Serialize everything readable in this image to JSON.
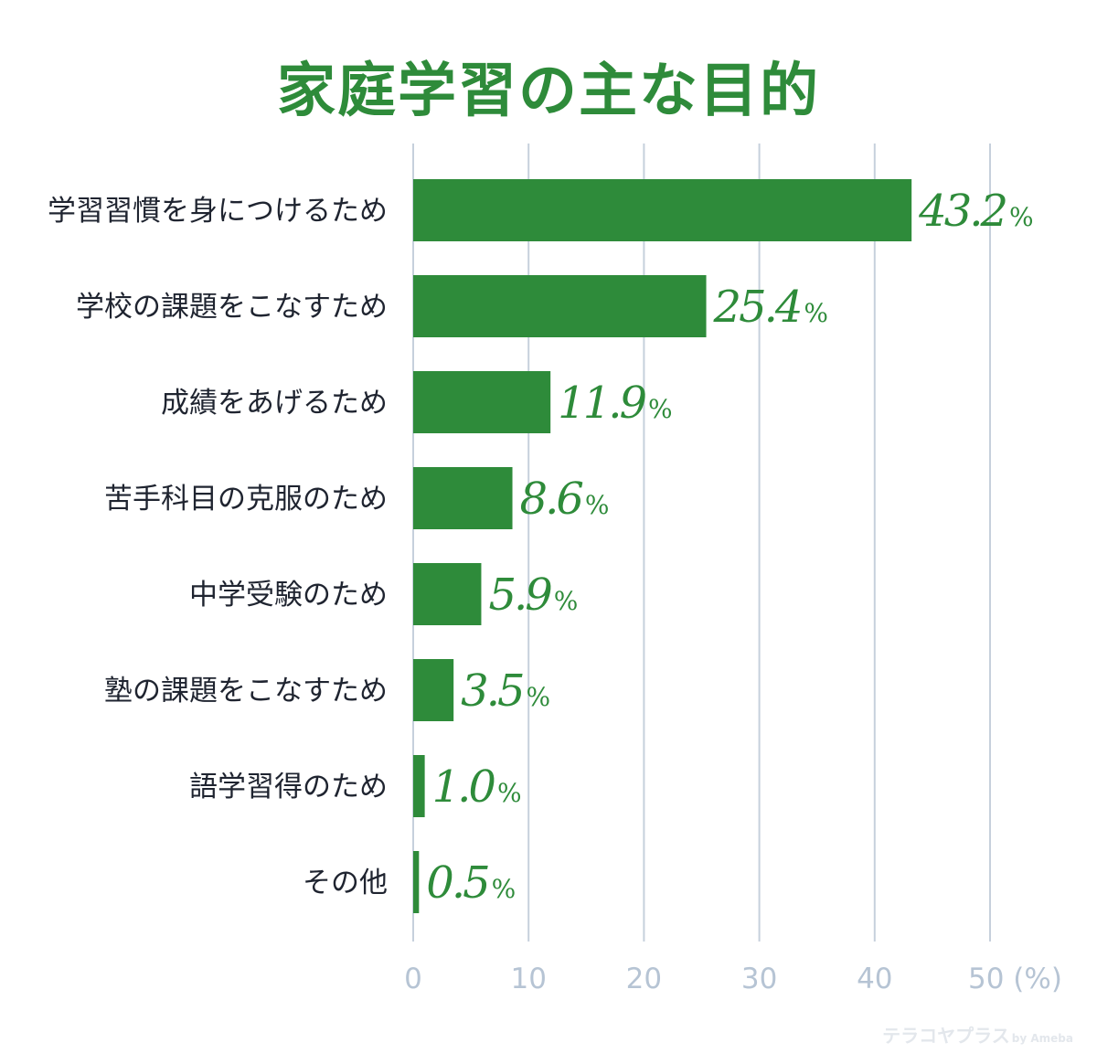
{
  "chart_data": {
    "type": "bar",
    "orientation": "horizontal",
    "title": "家庭学習の主な目的",
    "categories": [
      "学習習慣を身につけるため",
      "学校の課題をこなすため",
      "成績をあげるため",
      "苦手科目の克服のため",
      "中学受験のため",
      "塾の課題をこなすため",
      "語学習得のため",
      "その他"
    ],
    "values": [
      43.2,
      25.4,
      11.9,
      8.6,
      5.9,
      3.5,
      1.0,
      0.5
    ],
    "value_labels": [
      "43.2",
      "25.4",
      "11.9",
      "8.6",
      "5.9",
      "3.5",
      "1.0",
      "0.5"
    ],
    "value_unit": "%",
    "xlim": [
      0,
      50
    ],
    "xticks": [
      0,
      10,
      20,
      30,
      40,
      50
    ],
    "xtick_labels": [
      "0",
      "10",
      "20",
      "30",
      "40",
      "50 (%)"
    ],
    "grid": true,
    "colors": {
      "bar": "#2e8b3a",
      "grid": "#c6d0dc",
      "tick_text": "#b6c4d4",
      "category_text": "#1f2430",
      "title": "#2e8b3a"
    }
  },
  "branding": {
    "logo_text": "テラコヤプラス",
    "by_text": "by Ameba"
  }
}
